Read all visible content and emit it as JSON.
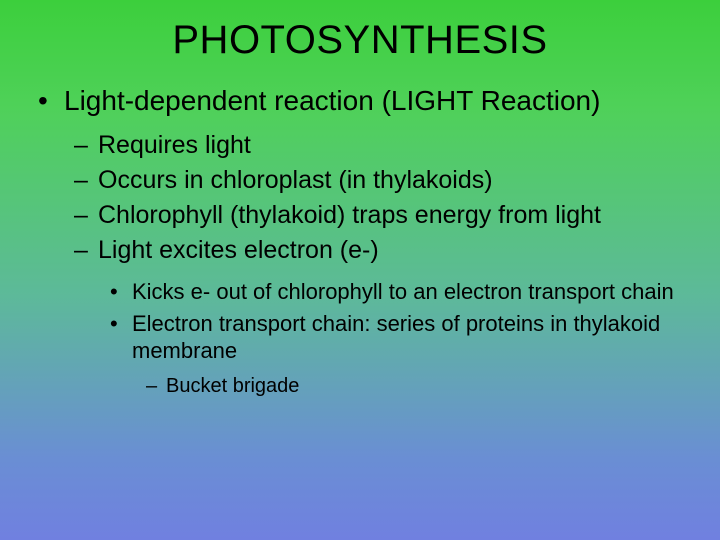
{
  "styling": {
    "background_gradient": [
      "#3ccf3c",
      "#4fd159",
      "#5db99a",
      "#6a8ed4",
      "#7080e0"
    ],
    "text_color": "#000000",
    "font_family": "Arial",
    "title_fontsize": 40,
    "lvl1_fontsize": 28,
    "lvl2_fontsize": 25,
    "lvl3_fontsize": 22,
    "lvl4_fontsize": 20,
    "bullet_lvl1": "•",
    "bullet_lvl2": "–",
    "bullet_lvl3": "•",
    "bullet_lvl4": "–"
  },
  "title": "PHOTOSYNTHESIS",
  "lvl1": {
    "text": "Light-dependent reaction (LIGHT Reaction)"
  },
  "lvl2": [
    {
      "text": "Requires light"
    },
    {
      "text": "Occurs in chloroplast (in thylakoids)"
    },
    {
      "text": "Chlorophyll (thylakoid) traps energy from light"
    },
    {
      "text": "Light excites electron (e-)"
    }
  ],
  "lvl3": [
    {
      "text": "Kicks e- out of chlorophyll to an electron transport chain"
    },
    {
      "text": "Electron transport chain:  series of proteins in thylakoid membrane"
    }
  ],
  "lvl4": [
    {
      "text": "Bucket brigade"
    }
  ]
}
